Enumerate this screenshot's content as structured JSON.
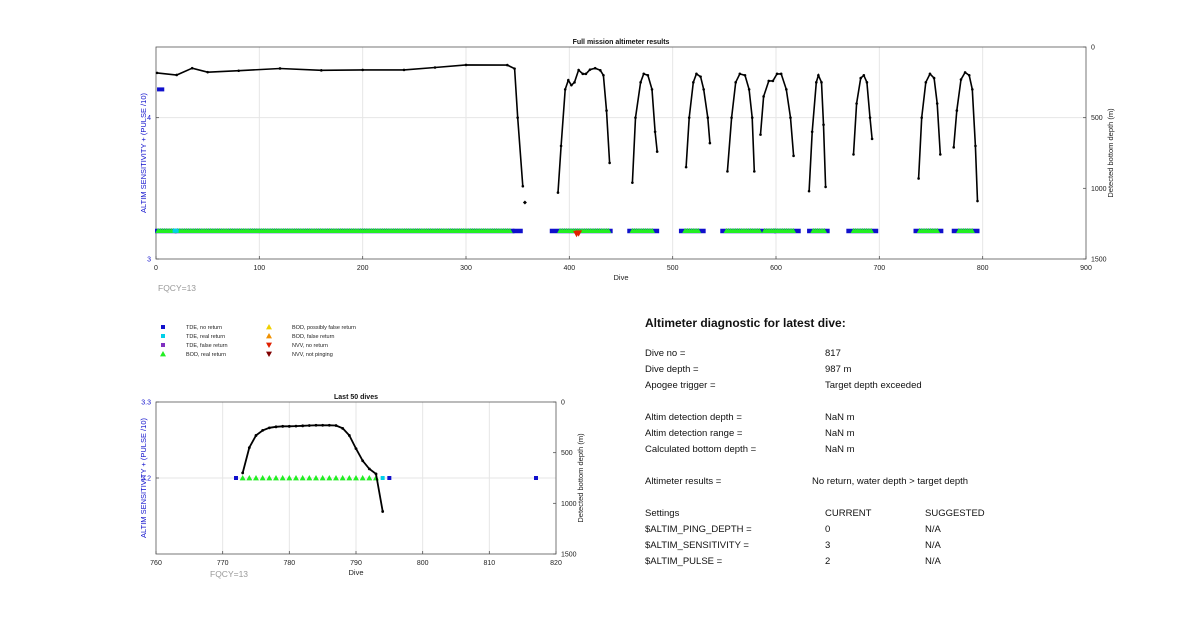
{
  "chart_data": [
    {
      "type": "scatter",
      "title": "Full mission altimeter results",
      "xlabel": "Dive",
      "ylabel_left": "ALTIM SENSITIVITY + (PULSE /10)",
      "ylabel_right": "Detected bottom depth (m)",
      "xlim": [
        0,
        900
      ],
      "xticks": [
        0,
        100,
        200,
        300,
        400,
        500,
        600,
        700,
        800,
        900
      ],
      "ylim_left": [
        3,
        4.5
      ],
      "yticks_left": [
        3,
        4
      ],
      "ylim_right": [
        1500,
        0
      ],
      "yticks_right": [
        0,
        500,
        1000,
        1500
      ],
      "grid": true,
      "annotation": "FQCY=13",
      "sensitivity_series": {
        "name": "altim sensitivity",
        "color": "#1010cc",
        "value_left": 4.2,
        "dives": [
          1,
          8
        ]
      },
      "depth_segments": [
        [
          [
            1,
            183
          ],
          [
            20,
            198
          ],
          [
            35,
            150
          ],
          [
            50,
            178
          ],
          [
            80,
            168
          ],
          [
            120,
            152
          ],
          [
            160,
            165
          ],
          [
            200,
            162
          ],
          [
            240,
            162
          ],
          [
            270,
            145
          ],
          [
            300,
            127
          ],
          [
            340,
            128
          ],
          [
            347,
            153
          ],
          [
            350,
            500
          ],
          [
            355,
            985
          ]
        ],
        [
          [
            389,
            1030
          ],
          [
            392,
            700
          ],
          [
            396,
            300
          ],
          [
            399,
            235
          ],
          [
            402,
            270
          ],
          [
            405,
            250
          ],
          [
            409,
            163
          ],
          [
            413,
            190
          ],
          [
            416,
            190
          ],
          [
            420,
            160
          ],
          [
            425,
            150
          ],
          [
            430,
            165
          ],
          [
            433,
            200
          ],
          [
            436,
            450
          ],
          [
            439,
            820
          ]
        ],
        [
          [
            461,
            960
          ],
          [
            464,
            500
          ],
          [
            469,
            250
          ],
          [
            472,
            190
          ],
          [
            476,
            200
          ],
          [
            480,
            300
          ],
          [
            483,
            600
          ],
          [
            485,
            740
          ]
        ],
        [
          [
            513,
            850
          ],
          [
            516,
            500
          ],
          [
            520,
            250
          ],
          [
            523,
            190
          ],
          [
            527,
            210
          ],
          [
            530,
            300
          ],
          [
            534,
            500
          ],
          [
            536,
            680
          ]
        ],
        [
          [
            553,
            880
          ],
          [
            557,
            500
          ],
          [
            561,
            250
          ],
          [
            565,
            190
          ],
          [
            570,
            200
          ],
          [
            574,
            300
          ],
          [
            577,
            500
          ],
          [
            579,
            880
          ]
        ],
        [
          [
            585,
            620
          ],
          [
            588,
            350
          ],
          [
            593,
            240
          ],
          [
            597,
            240
          ],
          [
            601,
            190
          ],
          [
            605,
            190
          ],
          [
            610,
            300
          ],
          [
            614,
            500
          ],
          [
            617,
            770
          ]
        ],
        [
          [
            632,
            1020
          ],
          [
            635,
            600
          ],
          [
            639,
            250
          ],
          [
            641,
            200
          ],
          [
            644,
            250
          ],
          [
            646,
            550
          ],
          [
            648,
            990
          ]
        ],
        [
          [
            675,
            760
          ],
          [
            678,
            400
          ],
          [
            682,
            220
          ],
          [
            685,
            200
          ],
          [
            688,
            250
          ],
          [
            691,
            500
          ],
          [
            693,
            650
          ]
        ],
        [
          [
            738,
            930
          ],
          [
            741,
            500
          ],
          [
            745,
            250
          ],
          [
            749,
            190
          ],
          [
            753,
            220
          ],
          [
            756,
            400
          ],
          [
            759,
            760
          ]
        ],
        [
          [
            772,
            710
          ],
          [
            775,
            450
          ],
          [
            779,
            230
          ],
          [
            783,
            180
          ],
          [
            787,
            200
          ],
          [
            790,
            300
          ],
          [
            793,
            700
          ],
          [
            795,
            1090
          ]
        ]
      ],
      "depth_outliers": [
        [
          357,
          1100
        ]
      ],
      "tde_segments": [
        [
          1,
          18
        ],
        [
          20,
          345
        ],
        [
          347,
          353
        ],
        [
          383,
          440
        ],
        [
          458,
          485
        ],
        [
          508,
          530
        ],
        [
          548,
          598
        ],
        [
          600,
          622
        ],
        [
          632,
          650
        ],
        [
          670,
          697
        ],
        [
          735,
          760
        ],
        [
          772,
          795
        ]
      ],
      "bod_segments": [
        [
          2,
          17
        ],
        [
          21,
          344
        ],
        [
          391,
          438
        ],
        [
          461,
          482
        ],
        [
          512,
          526
        ],
        [
          552,
          586
        ],
        [
          589,
          618
        ],
        [
          636,
          647
        ],
        [
          675,
          694
        ],
        [
          739,
          757
        ],
        [
          777,
          791
        ]
      ],
      "nvv_no_return": [
        [
          409,
          1317
        ],
        [
          407,
          1321
        ]
      ]
    },
    {
      "type": "scatter",
      "title": "Last 50 dives",
      "xlabel": "Dive",
      "ylabel_left": "ALTIM SENSITIVITY + (PULSE /10)",
      "ylabel_right": "Detected bottom depth (m)",
      "xlim": [
        760,
        820
      ],
      "xticks": [
        760,
        770,
        780,
        790,
        800,
        810,
        820
      ],
      "ylim_left": [
        3.1,
        3.3
      ],
      "yticks_left": [
        3.2,
        3.3
      ],
      "ylim_right": [
        1500,
        0
      ],
      "yticks_right": [
        0,
        500,
        1000,
        1500
      ],
      "grid": true,
      "annotation": "FQCY=13",
      "depth": {
        "x": [
          773,
          774,
          775,
          776,
          777,
          778,
          779,
          780,
          781,
          782,
          783,
          784,
          785,
          786,
          787,
          788,
          789,
          790,
          791,
          792,
          793,
          794
        ],
        "y": [
          700,
          450,
          330,
          280,
          255,
          245,
          240,
          240,
          238,
          235,
          232,
          230,
          230,
          230,
          232,
          260,
          330,
          460,
          580,
          660,
          710,
          1080
        ]
      },
      "tde_no_return": [
        772,
        795,
        817
      ],
      "tde_real_return": [
        794
      ],
      "bod_real_return": [
        773,
        774,
        775,
        776,
        777,
        778,
        779,
        780,
        781,
        782,
        783,
        784,
        785,
        786,
        787,
        788,
        789,
        790,
        791,
        792,
        793
      ]
    }
  ],
  "legend": {
    "items": [
      {
        "label": "TDE, no return",
        "color": "#1010cc",
        "shape": "square"
      },
      {
        "label": "TDE, real return",
        "color": "#00d0e8",
        "shape": "square"
      },
      {
        "label": "TDE, false return",
        "color": "#8030c0",
        "shape": "square"
      },
      {
        "label": "BOD, real return",
        "color": "#22ee22",
        "shape": "triangle-up"
      },
      {
        "label": "BOD, possibly false return",
        "color": "#f0d000",
        "shape": "triangle-up"
      },
      {
        "label": "BOD, false return",
        "color": "#f09000",
        "shape": "triangle-up"
      },
      {
        "label": "NVV, no return",
        "color": "#e02000",
        "shape": "triangle-down"
      },
      {
        "label": "NVV, not pinging",
        "color": "#800000",
        "shape": "triangle-down"
      }
    ]
  },
  "diagnostic": {
    "title": "Altimeter diagnostic for latest dive:",
    "dive_no_label": "Dive no =",
    "dive_no": "817",
    "dive_depth_label": "Dive depth =",
    "dive_depth": "987 m",
    "apogee_label": "Apogee trigger =",
    "apogee": "Target depth exceeded",
    "detect_depth_label": "Altim detection depth =",
    "detect_depth": "NaN m",
    "detect_range_label": "Altim detection range =",
    "detect_range": "NaN m",
    "calc_bottom_label": "Calculated bottom depth =",
    "calc_bottom": "NaN m",
    "results_label": "Altimeter results =",
    "results": "No return, water depth > target depth",
    "settings_label": "Settings",
    "current_label": "CURRENT",
    "suggested_label": "SUGGESTED",
    "settings": [
      {
        "name": "$ALTIM_PING_DEPTH =",
        "current": "0",
        "suggested": "N/A"
      },
      {
        "name": "$ALTIM_SENSITIVITY =",
        "current": "3",
        "suggested": "N/A"
      },
      {
        "name": "$ALTIM_PULSE =",
        "current": "2",
        "suggested": "N/A"
      }
    ]
  }
}
